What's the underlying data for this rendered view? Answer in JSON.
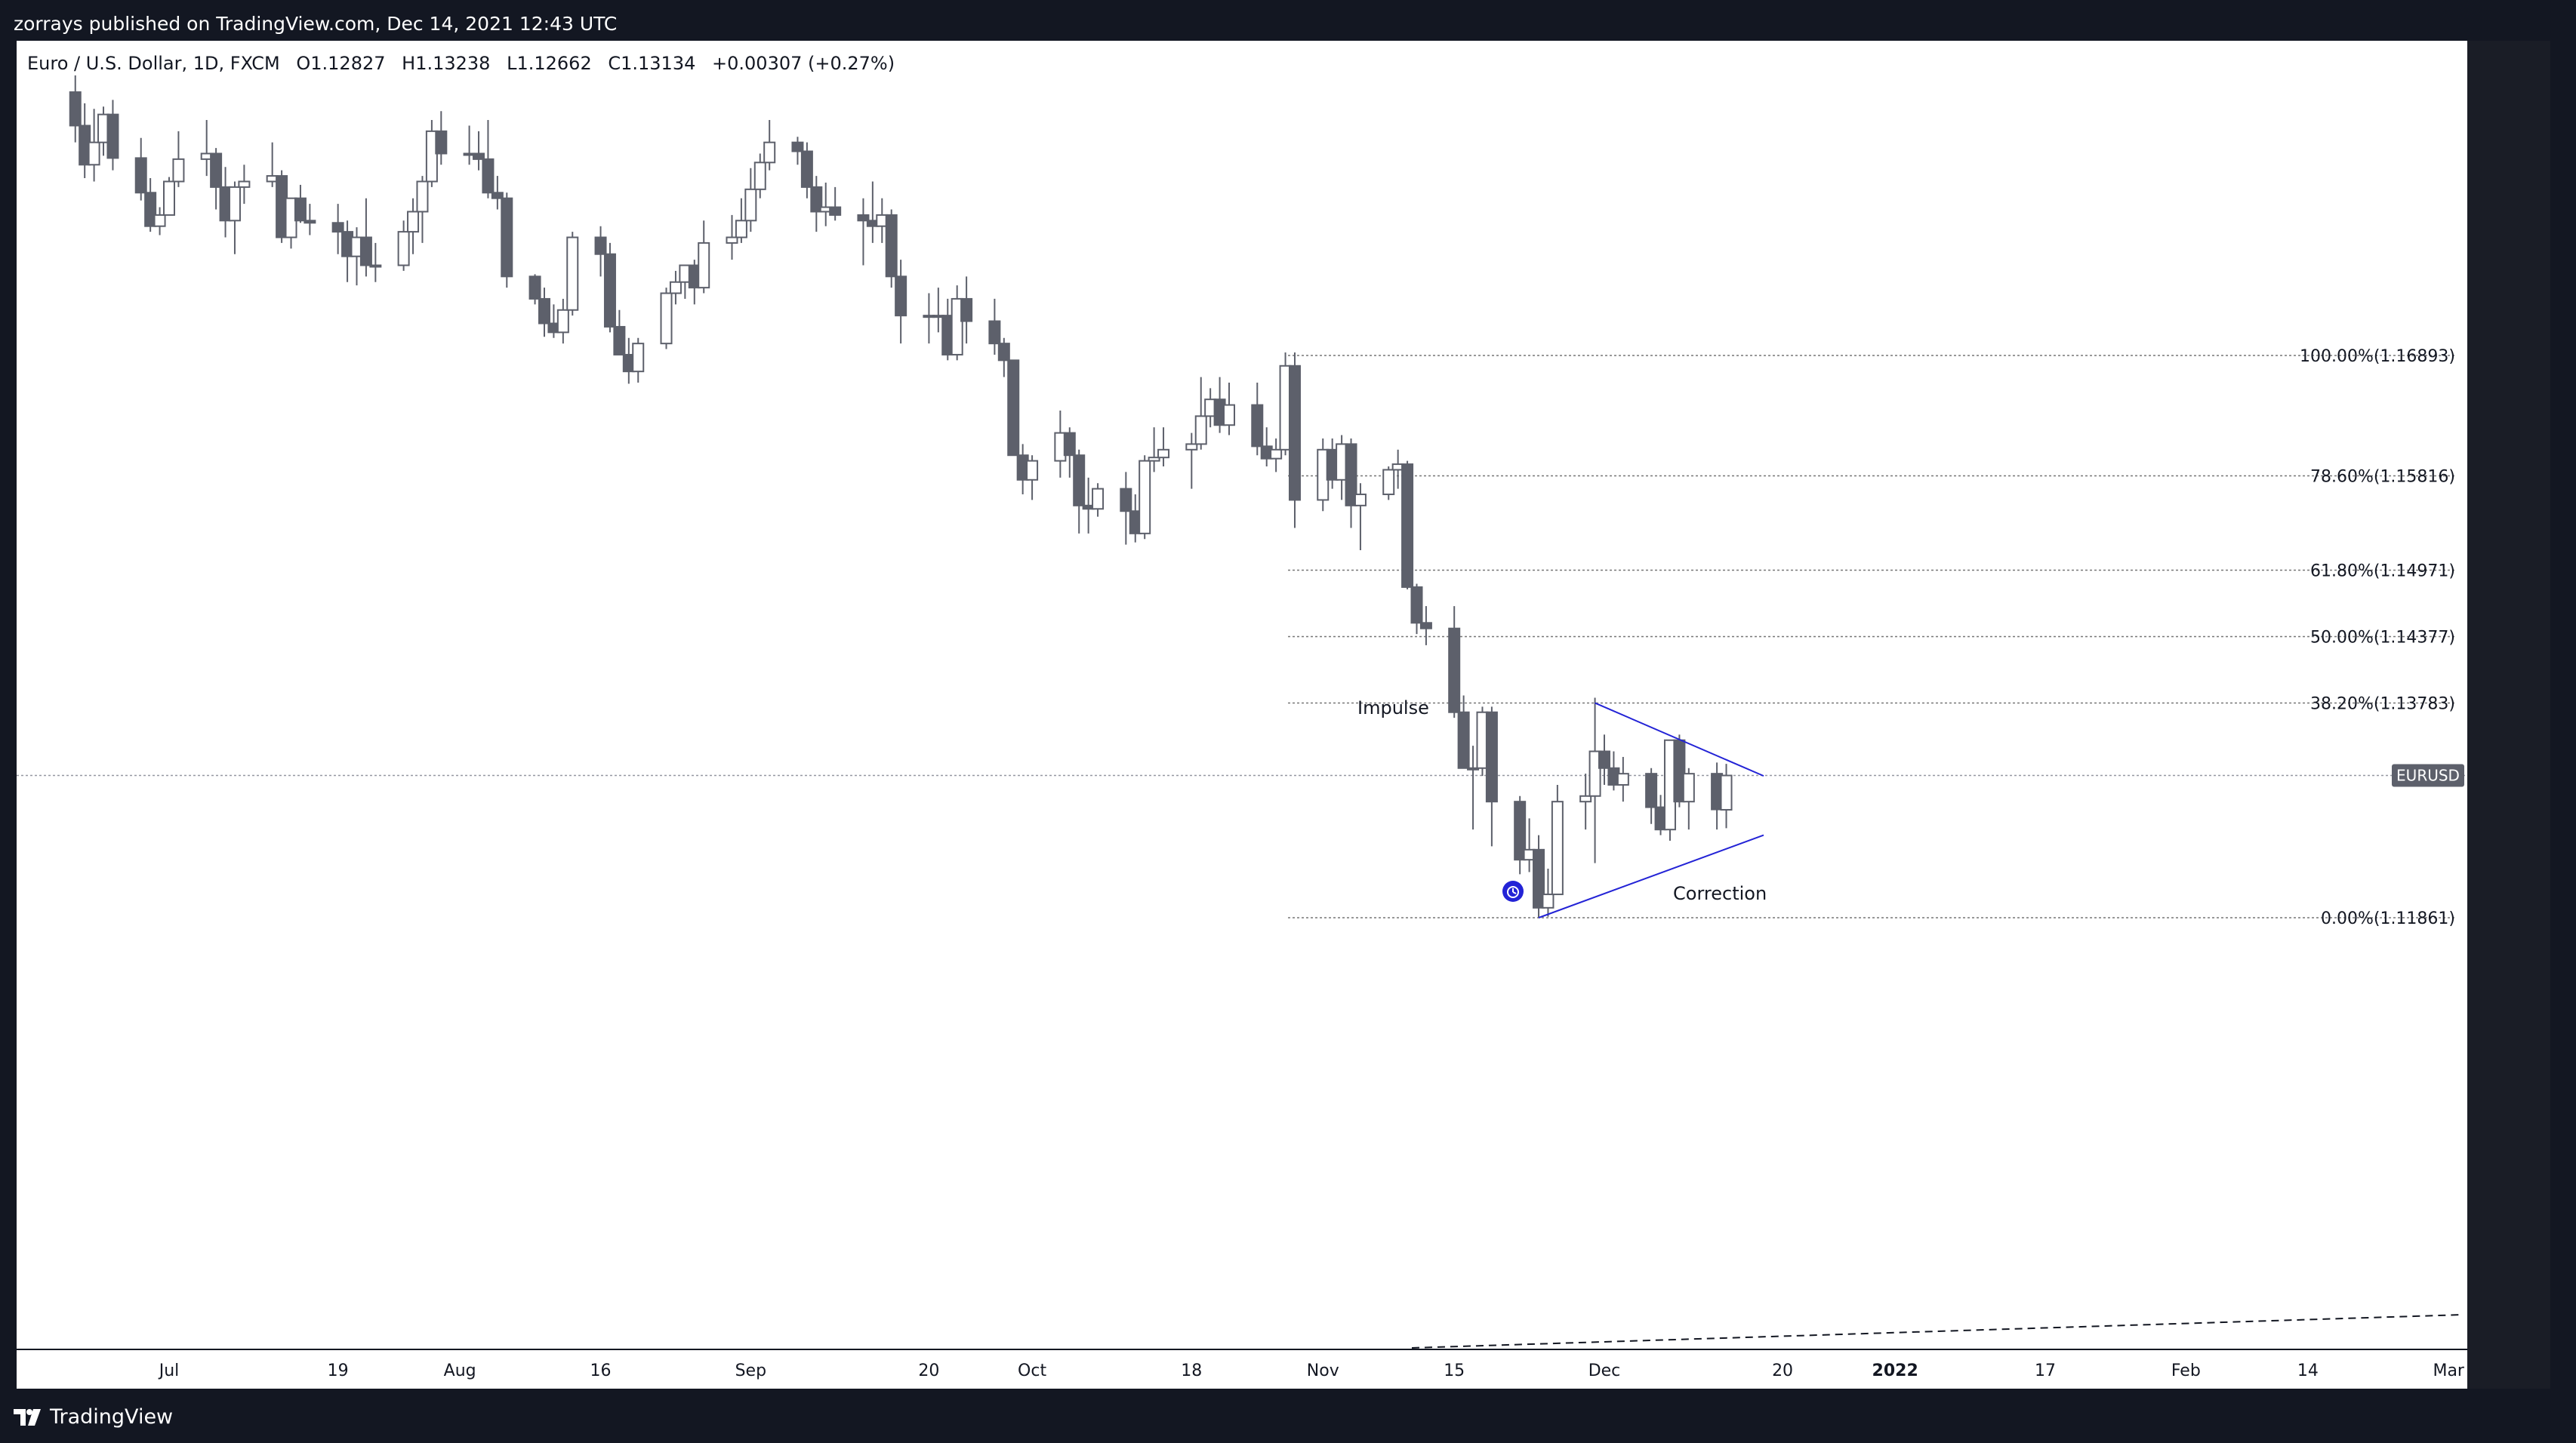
{
  "header": {
    "published": "zorrays published on TradingView.com, Dec 14, 2021 12:43 UTC"
  },
  "legend": {
    "symbol": "Euro / U.S. Dollar, 1D, FXCM",
    "open": "O1.12827",
    "high": "H1.13238",
    "low": "L1.12662",
    "close": "C1.13134",
    "change": "+0.00307 (+0.27%)"
  },
  "footer": {
    "brand": "TradingView"
  },
  "colors": {
    "background": "#131722",
    "pane": "#ffffff",
    "bear": "#5d606b",
    "bull": "#ffffff",
    "outline": "#5d606b",
    "pattern": "#2323d6",
    "fib": "#777777"
  },
  "chart_data": {
    "type": "candlestick",
    "symbol": "EURUSD",
    "x_ticks": [
      "Jul",
      "19",
      "Aug",
      "16",
      "Sep",
      "20",
      "Oct",
      "18",
      "Nov",
      "15",
      "Dec",
      "20",
      "2022",
      "17",
      "Feb",
      "14",
      "Mar"
    ],
    "fib_levels": [
      {
        "label": "100.00%(1.16893)",
        "value": 1.16893
      },
      {
        "label": "78.60%(1.15816)",
        "value": 1.15816
      },
      {
        "label": "61.80%(1.14971)",
        "value": 1.14971
      },
      {
        "label": "50.00%(1.14377)",
        "value": 1.14377
      },
      {
        "label": "38.20%(1.13783)",
        "value": 1.13783
      },
      {
        "label": "0.00%(1.11861)",
        "value": 1.11861
      }
    ],
    "price_label": "EURUSD",
    "last_price": 1.13134,
    "annotations": [
      {
        "text": "Impulse"
      },
      {
        "text": "Correction"
      }
    ],
    "candles": [
      {
        "date": "2021-06-21",
        "o": 1.1925,
        "h": 1.194,
        "l": 1.188,
        "c": 1.1895
      },
      {
        "date": "2021-06-22",
        "o": 1.1895,
        "h": 1.1915,
        "l": 1.1848,
        "c": 1.186
      },
      {
        "date": "2021-06-23",
        "o": 1.186,
        "h": 1.191,
        "l": 1.1845,
        "c": 1.188
      },
      {
        "date": "2021-06-24",
        "o": 1.188,
        "h": 1.1912,
        "l": 1.1868,
        "c": 1.1905
      },
      {
        "date": "2021-06-25",
        "o": 1.1905,
        "h": 1.1918,
        "l": 1.1855,
        "c": 1.1866
      },
      {
        "date": "2021-06-28",
        "o": 1.1866,
        "h": 1.1884,
        "l": 1.1828,
        "c": 1.1835
      },
      {
        "date": "2021-06-29",
        "o": 1.1835,
        "h": 1.1848,
        "l": 1.18,
        "c": 1.1805
      },
      {
        "date": "2021-06-30",
        "o": 1.1805,
        "h": 1.1822,
        "l": 1.1797,
        "c": 1.1815
      },
      {
        "date": "2021-07-01",
        "o": 1.1815,
        "h": 1.1849,
        "l": 1.1815,
        "c": 1.1845
      },
      {
        "date": "2021-07-02",
        "o": 1.1845,
        "h": 1.189,
        "l": 1.184,
        "c": 1.1865
      },
      {
        "date": "2021-07-05",
        "o": 1.1865,
        "h": 1.19,
        "l": 1.185,
        "c": 1.187
      },
      {
        "date": "2021-07-06",
        "o": 1.187,
        "h": 1.1875,
        "l": 1.182,
        "c": 1.184
      },
      {
        "date": "2021-07-07",
        "o": 1.184,
        "h": 1.1858,
        "l": 1.1795,
        "c": 1.181
      },
      {
        "date": "2021-07-08",
        "o": 1.181,
        "h": 1.1845,
        "l": 1.178,
        "c": 1.184
      },
      {
        "date": "2021-07-09",
        "o": 1.184,
        "h": 1.186,
        "l": 1.1825,
        "c": 1.1845
      },
      {
        "date": "2021-07-12",
        "o": 1.1845,
        "h": 1.188,
        "l": 1.184,
        "c": 1.185
      },
      {
        "date": "2021-07-13",
        "o": 1.185,
        "h": 1.1855,
        "l": 1.179,
        "c": 1.1795
      },
      {
        "date": "2021-07-14",
        "o": 1.1795,
        "h": 1.183,
        "l": 1.1785,
        "c": 1.183
      },
      {
        "date": "2021-07-15",
        "o": 1.183,
        "h": 1.1842,
        "l": 1.1808,
        "c": 1.181
      },
      {
        "date": "2021-07-16",
        "o": 1.181,
        "h": 1.1825,
        "l": 1.1797,
        "c": 1.1808
      },
      {
        "date": "2021-07-19",
        "o": 1.1808,
        "h": 1.1825,
        "l": 1.178,
        "c": 1.18
      },
      {
        "date": "2021-07-20",
        "o": 1.18,
        "h": 1.181,
        "l": 1.1755,
        "c": 1.1778
      },
      {
        "date": "2021-07-21",
        "o": 1.1778,
        "h": 1.1804,
        "l": 1.1752,
        "c": 1.1795
      },
      {
        "date": "2021-07-22",
        "o": 1.1795,
        "h": 1.183,
        "l": 1.176,
        "c": 1.177
      },
      {
        "date": "2021-07-23",
        "o": 1.177,
        "h": 1.179,
        "l": 1.1755,
        "c": 1.177
      },
      {
        "date": "2021-07-26",
        "o": 1.177,
        "h": 1.181,
        "l": 1.1765,
        "c": 1.18
      },
      {
        "date": "2021-07-27",
        "o": 1.18,
        "h": 1.183,
        "l": 1.178,
        "c": 1.1818
      },
      {
        "date": "2021-07-28",
        "o": 1.1818,
        "h": 1.185,
        "l": 1.179,
        "c": 1.1845
      },
      {
        "date": "2021-07-29",
        "o": 1.1845,
        "h": 1.19,
        "l": 1.184,
        "c": 1.189
      },
      {
        "date": "2021-07-30",
        "o": 1.189,
        "h": 1.1908,
        "l": 1.186,
        "c": 1.187
      },
      {
        "date": "2021-08-02",
        "o": 1.187,
        "h": 1.1895,
        "l": 1.186,
        "c": 1.187
      },
      {
        "date": "2021-08-03",
        "o": 1.187,
        "h": 1.189,
        "l": 1.1855,
        "c": 1.1865
      },
      {
        "date": "2021-08-04",
        "o": 1.1865,
        "h": 1.19,
        "l": 1.183,
        "c": 1.1835
      },
      {
        "date": "2021-08-05",
        "o": 1.1835,
        "h": 1.185,
        "l": 1.182,
        "c": 1.183
      },
      {
        "date": "2021-08-06",
        "o": 1.183,
        "h": 1.1835,
        "l": 1.175,
        "c": 1.176
      },
      {
        "date": "2021-08-09",
        "o": 1.176,
        "h": 1.1762,
        "l": 1.1735,
        "c": 1.174
      },
      {
        "date": "2021-08-10",
        "o": 1.174,
        "h": 1.175,
        "l": 1.1706,
        "c": 1.1718
      },
      {
        "date": "2021-08-11",
        "o": 1.1718,
        "h": 1.1735,
        "l": 1.1705,
        "c": 1.171
      },
      {
        "date": "2021-08-12",
        "o": 1.171,
        "h": 1.174,
        "l": 1.17,
        "c": 1.173
      },
      {
        "date": "2021-08-13",
        "o": 1.173,
        "h": 1.18,
        "l": 1.1725,
        "c": 1.1795
      },
      {
        "date": "2021-08-16",
        "o": 1.1795,
        "h": 1.1805,
        "l": 1.176,
        "c": 1.178
      },
      {
        "date": "2021-08-17",
        "o": 1.178,
        "h": 1.179,
        "l": 1.171,
        "c": 1.1715
      },
      {
        "date": "2021-08-18",
        "o": 1.1715,
        "h": 1.173,
        "l": 1.169,
        "c": 1.169
      },
      {
        "date": "2021-08-19",
        "o": 1.169,
        "h": 1.1705,
        "l": 1.1664,
        "c": 1.1675
      },
      {
        "date": "2021-08-20",
        "o": 1.1675,
        "h": 1.1705,
        "l": 1.1665,
        "c": 1.17
      },
      {
        "date": "2021-08-23",
        "o": 1.17,
        "h": 1.175,
        "l": 1.1695,
        "c": 1.1745
      },
      {
        "date": "2021-08-24",
        "o": 1.1745,
        "h": 1.1765,
        "l": 1.1735,
        "c": 1.1755
      },
      {
        "date": "2021-08-25",
        "o": 1.1755,
        "h": 1.177,
        "l": 1.174,
        "c": 1.177
      },
      {
        "date": "2021-08-26",
        "o": 1.177,
        "h": 1.1775,
        "l": 1.1735,
        "c": 1.175
      },
      {
        "date": "2021-08-27",
        "o": 1.175,
        "h": 1.181,
        "l": 1.1745,
        "c": 1.179
      },
      {
        "date": "2021-08-30",
        "o": 1.179,
        "h": 1.1815,
        "l": 1.1775,
        "c": 1.1795
      },
      {
        "date": "2021-08-31",
        "o": 1.1795,
        "h": 1.183,
        "l": 1.179,
        "c": 1.181
      },
      {
        "date": "2021-09-01",
        "o": 1.181,
        "h": 1.1857,
        "l": 1.18,
        "c": 1.1838
      },
      {
        "date": "2021-09-02",
        "o": 1.1838,
        "h": 1.187,
        "l": 1.183,
        "c": 1.1862
      },
      {
        "date": "2021-09-03",
        "o": 1.1862,
        "h": 1.19,
        "l": 1.1855,
        "c": 1.188
      },
      {
        "date": "2021-09-06",
        "o": 1.188,
        "h": 1.1885,
        "l": 1.186,
        "c": 1.1872
      },
      {
        "date": "2021-09-07",
        "o": 1.1872,
        "h": 1.188,
        "l": 1.183,
        "c": 1.184
      },
      {
        "date": "2021-09-08",
        "o": 1.184,
        "h": 1.185,
        "l": 1.18,
        "c": 1.1818
      },
      {
        "date": "2021-09-09",
        "o": 1.1818,
        "h": 1.1844,
        "l": 1.1805,
        "c": 1.1822
      },
      {
        "date": "2021-09-10",
        "o": 1.1822,
        "h": 1.184,
        "l": 1.181,
        "c": 1.1815
      },
      {
        "date": "2021-09-13",
        "o": 1.1815,
        "h": 1.183,
        "l": 1.177,
        "c": 1.181
      },
      {
        "date": "2021-09-14",
        "o": 1.181,
        "h": 1.1845,
        "l": 1.179,
        "c": 1.1805
      },
      {
        "date": "2021-09-15",
        "o": 1.1805,
        "h": 1.183,
        "l": 1.179,
        "c": 1.1815
      },
      {
        "date": "2021-09-16",
        "o": 1.1815,
        "h": 1.182,
        "l": 1.175,
        "c": 1.176
      },
      {
        "date": "2021-09-17",
        "o": 1.176,
        "h": 1.1775,
        "l": 1.17,
        "c": 1.1725
      },
      {
        "date": "2021-09-20",
        "o": 1.1725,
        "h": 1.1745,
        "l": 1.17,
        "c": 1.1725
      },
      {
        "date": "2021-09-21",
        "o": 1.1725,
        "h": 1.175,
        "l": 1.171,
        "c": 1.1725
      },
      {
        "date": "2021-09-22",
        "o": 1.1725,
        "h": 1.174,
        "l": 1.1685,
        "c": 1.169
      },
      {
        "date": "2021-09-23",
        "o": 1.169,
        "h": 1.1752,
        "l": 1.1685,
        "c": 1.174
      },
      {
        "date": "2021-09-24",
        "o": 1.174,
        "h": 1.176,
        "l": 1.17,
        "c": 1.172
      },
      {
        "date": "2021-09-27",
        "o": 1.172,
        "h": 1.174,
        "l": 1.169,
        "c": 1.17
      },
      {
        "date": "2021-09-28",
        "o": 1.17,
        "h": 1.1705,
        "l": 1.167,
        "c": 1.1685
      },
      {
        "date": "2021-09-29",
        "o": 1.1685,
        "h": 1.1685,
        "l": 1.16,
        "c": 1.16
      },
      {
        "date": "2021-09-30",
        "o": 1.16,
        "h": 1.161,
        "l": 1.1565,
        "c": 1.1578
      },
      {
        "date": "2021-10-01",
        "o": 1.1578,
        "h": 1.16,
        "l": 1.156,
        "c": 1.1595
      },
      {
        "date": "2021-10-04",
        "o": 1.1595,
        "h": 1.164,
        "l": 1.158,
        "c": 1.162
      },
      {
        "date": "2021-10-05",
        "o": 1.162,
        "h": 1.1625,
        "l": 1.158,
        "c": 1.16
      },
      {
        "date": "2021-10-06",
        "o": 1.16,
        "h": 1.1605,
        "l": 1.153,
        "c": 1.1555
      },
      {
        "date": "2021-10-07",
        "o": 1.1555,
        "h": 1.158,
        "l": 1.153,
        "c": 1.1552
      },
      {
        "date": "2021-10-08",
        "o": 1.1552,
        "h": 1.1575,
        "l": 1.1545,
        "c": 1.157
      },
      {
        "date": "2021-10-11",
        "o": 1.157,
        "h": 1.1585,
        "l": 1.152,
        "c": 1.155
      },
      {
        "date": "2021-10-12",
        "o": 1.155,
        "h": 1.1565,
        "l": 1.1522,
        "c": 1.153
      },
      {
        "date": "2021-10-13",
        "o": 1.153,
        "h": 1.16,
        "l": 1.1525,
        "c": 1.1595
      },
      {
        "date": "2021-10-14",
        "o": 1.1595,
        "h": 1.1625,
        "l": 1.1585,
        "c": 1.1598
      },
      {
        "date": "2021-10-15",
        "o": 1.1598,
        "h": 1.1625,
        "l": 1.159,
        "c": 1.1605
      },
      {
        "date": "2021-10-18",
        "o": 1.1605,
        "h": 1.162,
        "l": 1.157,
        "c": 1.161
      },
      {
        "date": "2021-10-19",
        "o": 1.161,
        "h": 1.167,
        "l": 1.1605,
        "c": 1.1635
      },
      {
        "date": "2021-10-20",
        "o": 1.1635,
        "h": 1.166,
        "l": 1.1625,
        "c": 1.165
      },
      {
        "date": "2021-10-21",
        "o": 1.165,
        "h": 1.167,
        "l": 1.162,
        "c": 1.1627
      },
      {
        "date": "2021-10-22",
        "o": 1.1627,
        "h": 1.1665,
        "l": 1.1618,
        "c": 1.1645
      },
      {
        "date": "2021-10-25",
        "o": 1.1645,
        "h": 1.1665,
        "l": 1.16,
        "c": 1.1608
      },
      {
        "date": "2021-10-26",
        "o": 1.1608,
        "h": 1.1625,
        "l": 1.159,
        "c": 1.1597
      },
      {
        "date": "2021-10-27",
        "o": 1.1597,
        "h": 1.1615,
        "l": 1.1585,
        "c": 1.1605
      },
      {
        "date": "2021-10-28",
        "o": 1.1605,
        "h": 1.1692,
        "l": 1.16,
        "c": 1.168
      },
      {
        "date": "2021-10-29",
        "o": 1.168,
        "h": 1.1692,
        "l": 1.1535,
        "c": 1.156
      },
      {
        "date": "2021-11-01",
        "o": 1.156,
        "h": 1.1615,
        "l": 1.155,
        "c": 1.1605
      },
      {
        "date": "2021-11-02",
        "o": 1.1605,
        "h": 1.1615,
        "l": 1.157,
        "c": 1.1578
      },
      {
        "date": "2021-11-03",
        "o": 1.1578,
        "h": 1.1618,
        "l": 1.156,
        "c": 1.161
      },
      {
        "date": "2021-11-04",
        "o": 1.161,
        "h": 1.1615,
        "l": 1.1535,
        "c": 1.1555
      },
      {
        "date": "2021-11-05",
        "o": 1.1555,
        "h": 1.1575,
        "l": 1.1515,
        "c": 1.1565
      },
      {
        "date": "2021-11-08",
        "o": 1.1565,
        "h": 1.159,
        "l": 1.156,
        "c": 1.1587
      },
      {
        "date": "2021-11-09",
        "o": 1.1587,
        "h": 1.1605,
        "l": 1.157,
        "c": 1.1592
      },
      {
        "date": "2021-11-10",
        "o": 1.1592,
        "h": 1.1595,
        "l": 1.148,
        "c": 1.1482
      },
      {
        "date": "2021-11-11",
        "o": 1.1482,
        "h": 1.1485,
        "l": 1.144,
        "c": 1.145
      },
      {
        "date": "2021-11-12",
        "o": 1.145,
        "h": 1.1465,
        "l": 1.143,
        "c": 1.1445
      },
      {
        "date": "2021-11-15",
        "o": 1.1445,
        "h": 1.1465,
        "l": 1.1365,
        "c": 1.137
      },
      {
        "date": "2021-11-16",
        "o": 1.137,
        "h": 1.1385,
        "l": 1.132,
        "c": 1.132
      },
      {
        "date": "2021-11-17",
        "o": 1.132,
        "h": 1.134,
        "l": 1.1265,
        "c": 1.132
      },
      {
        "date": "2021-11-18",
        "o": 1.132,
        "h": 1.1375,
        "l": 1.1313,
        "c": 1.137
      },
      {
        "date": "2021-11-19",
        "o": 1.137,
        "h": 1.1375,
        "l": 1.125,
        "c": 1.129
      },
      {
        "date": "2021-11-22",
        "o": 1.129,
        "h": 1.1295,
        "l": 1.1225,
        "c": 1.1238
      },
      {
        "date": "2021-11-23",
        "o": 1.1238,
        "h": 1.1275,
        "l": 1.1227,
        "c": 1.1247
      },
      {
        "date": "2021-11-24",
        "o": 1.1247,
        "h": 1.126,
        "l": 1.1186,
        "c": 1.1195
      },
      {
        "date": "2021-11-25",
        "o": 1.1195,
        "h": 1.123,
        "l": 1.1187,
        "c": 1.1207
      },
      {
        "date": "2021-11-26",
        "o": 1.1207,
        "h": 1.1305,
        "l": 1.1207,
        "c": 1.129
      },
      {
        "date": "2021-11-29",
        "o": 1.129,
        "h": 1.1315,
        "l": 1.1265,
        "c": 1.1295
      },
      {
        "date": "2021-11-30",
        "o": 1.1295,
        "h": 1.1383,
        "l": 1.1235,
        "c": 1.1335
      },
      {
        "date": "2021-12-01",
        "o": 1.1335,
        "h": 1.135,
        "l": 1.1305,
        "c": 1.132
      },
      {
        "date": "2021-12-02",
        "o": 1.132,
        "h": 1.1335,
        "l": 1.13,
        "c": 1.1305
      },
      {
        "date": "2021-12-03",
        "o": 1.1305,
        "h": 1.133,
        "l": 1.129,
        "c": 1.1315
      },
      {
        "date": "2021-12-06",
        "o": 1.1315,
        "h": 1.132,
        "l": 1.127,
        "c": 1.1285
      },
      {
        "date": "2021-12-07",
        "o": 1.1285,
        "h": 1.1296,
        "l": 1.126,
        "c": 1.1265
      },
      {
        "date": "2021-12-08",
        "o": 1.1265,
        "h": 1.1345,
        "l": 1.1255,
        "c": 1.1345
      },
      {
        "date": "2021-12-09",
        "o": 1.1345,
        "h": 1.135,
        "l": 1.1285,
        "c": 1.129
      },
      {
        "date": "2021-12-10",
        "o": 1.129,
        "h": 1.132,
        "l": 1.1265,
        "c": 1.1315
      },
      {
        "date": "2021-12-13",
        "o": 1.1315,
        "h": 1.1325,
        "l": 1.1265,
        "c": 1.1283
      },
      {
        "date": "2021-12-14",
        "o": 1.12827,
        "h": 1.13238,
        "l": 1.12662,
        "c": 1.13134
      }
    ]
  }
}
